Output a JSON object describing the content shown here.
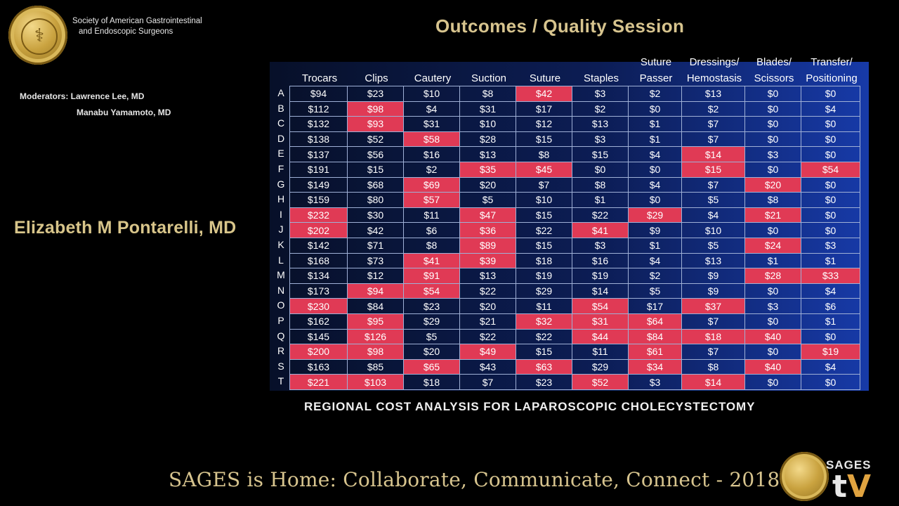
{
  "header": {
    "org_line1": "Society of American Gastrointestinal",
    "org_line2": "and Endoscopic Surgeons",
    "session_title": "Outcomes / Quality Session"
  },
  "moderators": {
    "line1": "Moderators: Lawrence Lee, MD",
    "line2": "Manabu Yamamoto, MD"
  },
  "speaker": "Elizabeth M Pontarelli, MD",
  "slide": {
    "caption": "REGIONAL COST ANALYSIS FOR LAPAROSCOPIC CHOLECYSTECTOMY",
    "columns": [
      [
        "Trocars"
      ],
      [
        "Clips"
      ],
      [
        "Cautery"
      ],
      [
        "Suction"
      ],
      [
        "Suture"
      ],
      [
        "Staples"
      ],
      [
        "Suture",
        "Passer"
      ],
      [
        "Dressings/",
        "Hemostasis"
      ],
      [
        "Blades/",
        "Scissors"
      ],
      [
        "Transfer/",
        "Positioning"
      ]
    ],
    "highlight_color": "#e03a55",
    "rows": [
      {
        "label": "A",
        "values": [
          "$94",
          "$23",
          "$10",
          "$8",
          "$42",
          "$3",
          "$2",
          "$13",
          "$0",
          "$0"
        ],
        "hi": [
          4
        ]
      },
      {
        "label": "B",
        "values": [
          "$112",
          "$98",
          "$4",
          "$31",
          "$17",
          "$2",
          "$0",
          "$2",
          "$0",
          "$4"
        ],
        "hi": [
          1
        ]
      },
      {
        "label": "C",
        "values": [
          "$132",
          "$93",
          "$31",
          "$10",
          "$12",
          "$13",
          "$1",
          "$7",
          "$0",
          "$0"
        ],
        "hi": [
          1
        ]
      },
      {
        "label": "D",
        "values": [
          "$138",
          "$52",
          "$58",
          "$28",
          "$15",
          "$3",
          "$1",
          "$7",
          "$0",
          "$0"
        ],
        "hi": [
          2
        ]
      },
      {
        "label": "E",
        "values": [
          "$137",
          "$56",
          "$16",
          "$13",
          "$8",
          "$15",
          "$4",
          "$14",
          "$3",
          "$0"
        ],
        "hi": [
          7
        ]
      },
      {
        "label": "F",
        "values": [
          "$191",
          "$15",
          "$2",
          "$35",
          "$45",
          "$0",
          "$0",
          "$15",
          "$0",
          "$54"
        ],
        "hi": [
          3,
          4,
          7,
          9
        ]
      },
      {
        "label": "G",
        "values": [
          "$149",
          "$68",
          "$69",
          "$20",
          "$7",
          "$8",
          "$4",
          "$7",
          "$20",
          "$0"
        ],
        "hi": [
          2,
          8
        ]
      },
      {
        "label": "H",
        "values": [
          "$159",
          "$80",
          "$57",
          "$5",
          "$10",
          "$1",
          "$0",
          "$5",
          "$8",
          "$0"
        ],
        "hi": [
          2
        ]
      },
      {
        "label": "I",
        "values": [
          "$232",
          "$30",
          "$11",
          "$47",
          "$15",
          "$22",
          "$29",
          "$4",
          "$21",
          "$0"
        ],
        "hi": [
          0,
          3,
          6,
          8
        ]
      },
      {
        "label": "J",
        "values": [
          "$202",
          "$42",
          "$6",
          "$36",
          "$22",
          "$41",
          "$9",
          "$10",
          "$0",
          "$0"
        ],
        "hi": [
          0,
          3,
          5
        ]
      },
      {
        "label": "K",
        "values": [
          "$142",
          "$71",
          "$8",
          "$89",
          "$15",
          "$3",
          "$1",
          "$5",
          "$24",
          "$3"
        ],
        "hi": [
          3,
          8
        ]
      },
      {
        "label": "L",
        "values": [
          "$168",
          "$73",
          "$41",
          "$39",
          "$18",
          "$16",
          "$4",
          "$13",
          "$1",
          "$1"
        ],
        "hi": [
          2,
          3
        ]
      },
      {
        "label": "M",
        "values": [
          "$134",
          "$12",
          "$91",
          "$13",
          "$19",
          "$19",
          "$2",
          "$9",
          "$28",
          "$33"
        ],
        "hi": [
          2,
          8,
          9
        ]
      },
      {
        "label": "N",
        "values": [
          "$173",
          "$94",
          "$54",
          "$22",
          "$29",
          "$14",
          "$5",
          "$9",
          "$0",
          "$4"
        ],
        "hi": [
          1,
          2
        ]
      },
      {
        "label": "O",
        "values": [
          "$230",
          "$84",
          "$23",
          "$20",
          "$11",
          "$54",
          "$17",
          "$37",
          "$3",
          "$6"
        ],
        "hi": [
          0,
          5,
          7
        ]
      },
      {
        "label": "P",
        "values": [
          "$162",
          "$95",
          "$29",
          "$21",
          "$32",
          "$31",
          "$64",
          "$7",
          "$0",
          "$1"
        ],
        "hi": [
          1,
          4,
          5,
          6
        ]
      },
      {
        "label": "Q",
        "values": [
          "$145",
          "$126",
          "$5",
          "$22",
          "$22",
          "$44",
          "$84",
          "$18",
          "$40",
          "$0"
        ],
        "hi": [
          1,
          5,
          6,
          7,
          8
        ]
      },
      {
        "label": "R",
        "values": [
          "$200",
          "$98",
          "$20",
          "$49",
          "$15",
          "$11",
          "$61",
          "$7",
          "$0",
          "$19"
        ],
        "hi": [
          0,
          1,
          3,
          6,
          9
        ]
      },
      {
        "label": "S",
        "values": [
          "$163",
          "$85",
          "$65",
          "$43",
          "$63",
          "$29",
          "$34",
          "$8",
          "$40",
          "$4"
        ],
        "hi": [
          2,
          4,
          6,
          8
        ]
      },
      {
        "label": "T",
        "values": [
          "$221",
          "$103",
          "$18",
          "$7",
          "$23",
          "$52",
          "$3",
          "$14",
          "$0",
          "$0"
        ],
        "hi": [
          0,
          1,
          5,
          7
        ]
      }
    ]
  },
  "footer": "SAGES is Home: Collaborate, Communicate, Connect - 2018",
  "branding": {
    "tv_small": "SAGES",
    "tv_big_t": "t",
    "tv_big_v": "V"
  }
}
